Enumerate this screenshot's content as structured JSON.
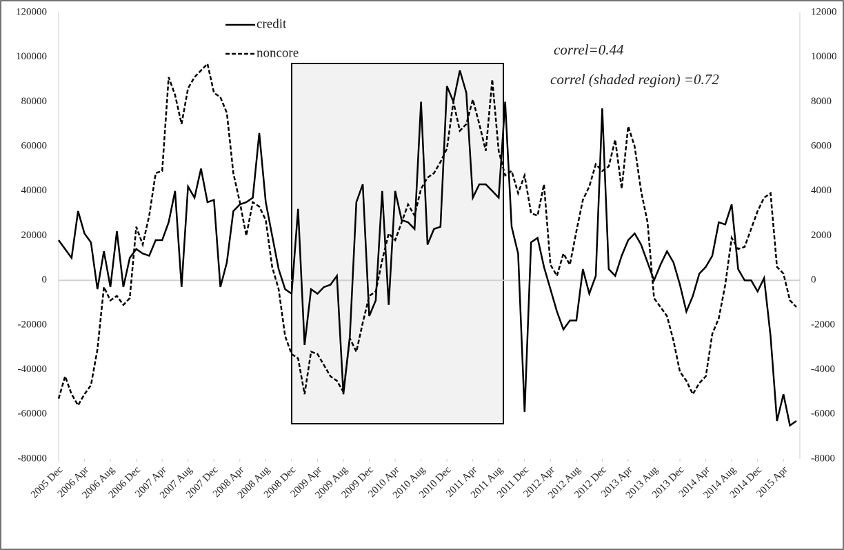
{
  "chart_data": {
    "type": "line",
    "categories": [
      "2005 Dec",
      null,
      null,
      null,
      "2006 Apr",
      null,
      null,
      null,
      "2006 Aug",
      null,
      null,
      null,
      "2006 Dec",
      null,
      null,
      null,
      "2007 Apr",
      null,
      null,
      null,
      "2007 Aug",
      null,
      null,
      null,
      "2007 Dec",
      null,
      null,
      null,
      "2008 Apr",
      null,
      null,
      null,
      "2008 Aug",
      null,
      null,
      null,
      "2008 Dec",
      null,
      null,
      null,
      "2009 Apr",
      null,
      null,
      null,
      "2009 Aug",
      null,
      null,
      null,
      "2009 Dec",
      null,
      null,
      null,
      "2010 Apr",
      null,
      null,
      null,
      "2010 Aug",
      null,
      null,
      null,
      "2010 Dec",
      null,
      null,
      null,
      "2011 Apr",
      null,
      null,
      null,
      "2011 Aug",
      null,
      null,
      null,
      "2011 Dec",
      null,
      null,
      null,
      "2012 Apr",
      null,
      null,
      null,
      "2012 Aug",
      null,
      null,
      null,
      "2012 Dec",
      null,
      null,
      null,
      "2013 Apr",
      null,
      null,
      null,
      "2013 Aug",
      null,
      null,
      null,
      "2013 Dec",
      null,
      null,
      null,
      "2014 Apr",
      null,
      null,
      null,
      "2014 Aug",
      null,
      null,
      null,
      "2014 Dec",
      null,
      null,
      null,
      "2015 Apr",
      null,
      null
    ],
    "series": [
      {
        "name": "credit",
        "color": "#000000",
        "style": "solid",
        "values": [
          18000,
          14000,
          10000,
          31000,
          21000,
          17000,
          -4000,
          13000,
          -3000,
          22000,
          -3000,
          10000,
          14000,
          12000,
          11000,
          18000,
          18000,
          26000,
          40000,
          -3000,
          42000,
          37000,
          50000,
          35000,
          36000,
          -3000,
          8000,
          31000,
          34000,
          35000,
          37000,
          66000,
          35000,
          20000,
          5000,
          -4000,
          -6000,
          32000,
          -29000,
          -4000,
          -6000,
          -3000,
          -2000,
          2000,
          -51000,
          -25000,
          35000,
          43000,
          -16000,
          -9000,
          40000,
          -11000,
          40000,
          27000,
          26000,
          23000,
          80000,
          16000,
          23000,
          24000,
          87000,
          80000,
          94000,
          84000,
          37000,
          43000,
          43000,
          40000,
          37000,
          80000,
          24000,
          12000,
          -59000,
          17000,
          19000,
          6000,
          -4000,
          -14000,
          -22000,
          -18000,
          -18000,
          5000,
          -6000,
          2000,
          77000,
          5000,
          2000,
          11000,
          18000,
          21000,
          16000,
          8000,
          0,
          7000,
          13000,
          8000,
          -2000,
          -14000,
          -7000,
          3000,
          6000,
          11000,
          26000,
          25000,
          34000,
          5000,
          0,
          0,
          -5000,
          1000,
          -25000,
          -63000,
          -51000,
          -65000,
          -63000
        ]
      },
      {
        "name": "noncore",
        "color": "#000000",
        "style": "dashed",
        "axis": "y2",
        "values": [
          -5300,
          -4300,
          -5100,
          -5600,
          -5100,
          -4700,
          -3100,
          -300,
          -900,
          -700,
          -1100,
          -800,
          2400,
          1600,
          2900,
          4800,
          4900,
          9100,
          8300,
          7000,
          8600,
          9100,
          9400,
          9700,
          8400,
          8200,
          7500,
          4800,
          3500,
          2000,
          3500,
          3300,
          2700,
          600,
          -400,
          -2500,
          -3300,
          -3500,
          -5100,
          -3200,
          -3300,
          -3800,
          -4300,
          -4500,
          -5000,
          -2600,
          -3200,
          -1900,
          -700,
          -500,
          900,
          2100,
          1800,
          2600,
          3400,
          2900,
          4100,
          4600,
          4800,
          5300,
          5900,
          8000,
          6700,
          7000,
          8100,
          7000,
          5800,
          9000,
          5800,
          4700,
          4900,
          3900,
          4700,
          3000,
          2900,
          4300,
          700,
          200,
          1200,
          700,
          2200,
          3600,
          4200,
          5200,
          4900,
          5100,
          6300,
          4100,
          6900,
          6000,
          4000,
          2600,
          -800,
          -1200,
          -1600,
          -2700,
          -4100,
          -4500,
          -5100,
          -4600,
          -4300,
          -2400,
          -1700,
          -200,
          1900,
          1400,
          1500,
          2300,
          3100,
          3700,
          3900,
          600,
          300,
          -900,
          -1200
        ]
      }
    ],
    "ylim": [
      -80000,
      120000
    ],
    "yticks": [
      -80000,
      -60000,
      -40000,
      -20000,
      0,
      20000,
      40000,
      60000,
      80000,
      100000,
      120000
    ],
    "y2lim": [
      -8000,
      12000
    ],
    "y2ticks": [
      -8000,
      -6000,
      -4000,
      -2000,
      0,
      2000,
      4000,
      6000,
      8000,
      10000,
      12000
    ],
    "annotations": [
      "correl=0.44",
      "correl (shaded region) =0.72"
    ]
  }
}
